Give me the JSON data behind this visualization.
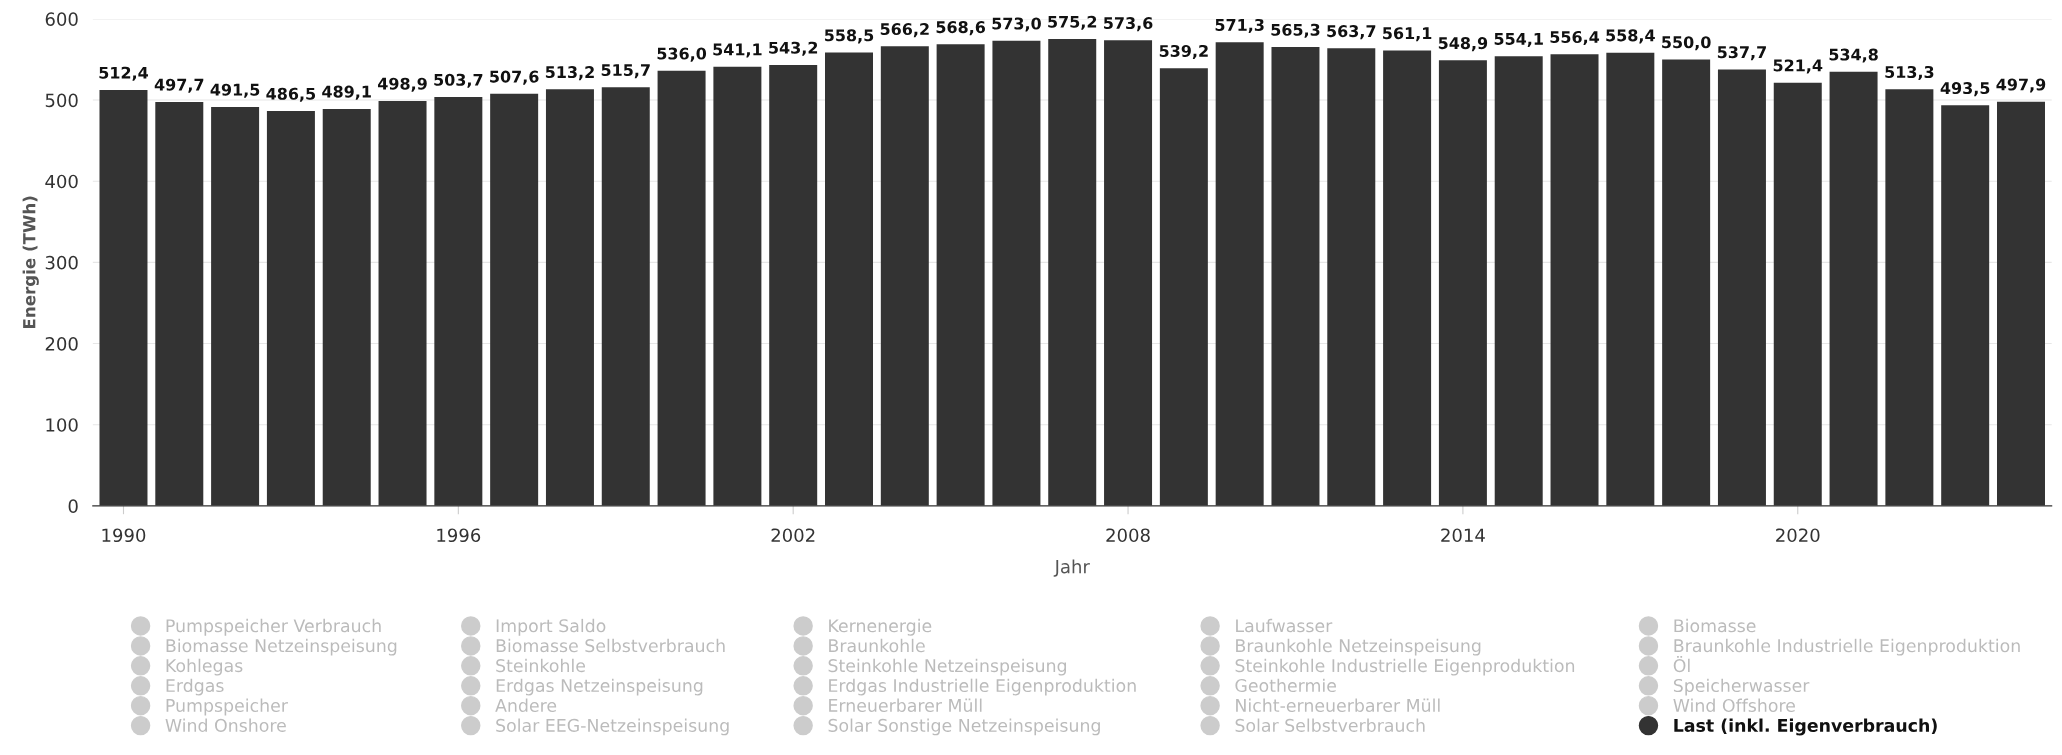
{
  "chart_data": {
    "type": "bar",
    "xlabel": "Jahr",
    "ylabel": "Energie (TWh)",
    "x": [
      1990,
      1991,
      1992,
      1993,
      1994,
      1995,
      1996,
      1997,
      1998,
      1999,
      2000,
      2001,
      2002,
      2003,
      2004,
      2005,
      2006,
      2007,
      2008,
      2009,
      2010,
      2011,
      2012,
      2013,
      2014,
      2015,
      2016,
      2017,
      2018,
      2019,
      2020,
      2021,
      2022,
      2023,
      2024
    ],
    "xlim": [
      1989.45,
      2024.55
    ],
    "xticks": [
      1990,
      1996,
      2002,
      2008,
      2014,
      2020
    ],
    "ylim": [
      0,
      600
    ],
    "yticks": [
      0,
      100,
      200,
      300,
      400,
      500,
      600
    ],
    "grid": "y",
    "legend": "bottom",
    "marker": "circle",
    "series": [
      {
        "name": "Pumpspeicher Verbrauch",
        "color": "#cccccc",
        "values": [
          null,
          null,
          null,
          null,
          null,
          null,
          null,
          null,
          null,
          null,
          null,
          null,
          null,
          null,
          null,
          null,
          null,
          null,
          null,
          null,
          null,
          null,
          null,
          null,
          null,
          null,
          null,
          null,
          null,
          null,
          null,
          null,
          null,
          null,
          null
        ]
      },
      {
        "name": "Import Saldo",
        "color": "#cccccc",
        "values": [
          null,
          null,
          null,
          null,
          null,
          null,
          null,
          null,
          null,
          null,
          null,
          null,
          null,
          null,
          null,
          null,
          null,
          null,
          null,
          null,
          null,
          null,
          null,
          null,
          null,
          null,
          null,
          null,
          null,
          null,
          null,
          null,
          null,
          null,
          null
        ]
      },
      {
        "name": "Kernenergie",
        "color": "#cccccc",
        "values": [
          null,
          null,
          null,
          null,
          null,
          null,
          null,
          null,
          null,
          null,
          null,
          null,
          null,
          null,
          null,
          null,
          null,
          null,
          null,
          null,
          null,
          null,
          null,
          null,
          null,
          null,
          null,
          null,
          null,
          null,
          null,
          null,
          null,
          null,
          null
        ]
      },
      {
        "name": "Laufwasser",
        "color": "#cccccc",
        "values": [
          null,
          null,
          null,
          null,
          null,
          null,
          null,
          null,
          null,
          null,
          null,
          null,
          null,
          null,
          null,
          null,
          null,
          null,
          null,
          null,
          null,
          null,
          null,
          null,
          null,
          null,
          null,
          null,
          null,
          null,
          null,
          null,
          null,
          null,
          null
        ]
      },
      {
        "name": "Biomasse",
        "color": "#cccccc",
        "values": [
          null,
          null,
          null,
          null,
          null,
          null,
          null,
          null,
          null,
          null,
          null,
          null,
          null,
          null,
          null,
          null,
          null,
          null,
          null,
          null,
          null,
          null,
          null,
          null,
          null,
          null,
          null,
          null,
          null,
          null,
          null,
          null,
          null,
          null,
          null
        ]
      },
      {
        "name": "Biomasse Netzeinspeisung",
        "color": "#cccccc",
        "values": [
          null,
          null,
          null,
          null,
          null,
          null,
          null,
          null,
          null,
          null,
          null,
          null,
          null,
          null,
          null,
          null,
          null,
          null,
          null,
          null,
          null,
          null,
          null,
          null,
          null,
          null,
          null,
          null,
          null,
          null,
          null,
          null,
          null,
          null,
          null
        ]
      },
      {
        "name": "Biomasse Selbstverbrauch",
        "color": "#cccccc",
        "values": [
          null,
          null,
          null,
          null,
          null,
          null,
          null,
          null,
          null,
          null,
          null,
          null,
          null,
          null,
          null,
          null,
          null,
          null,
          null,
          null,
          null,
          null,
          null,
          null,
          null,
          null,
          null,
          null,
          null,
          null,
          null,
          null,
          null,
          null,
          null
        ]
      },
      {
        "name": "Braunkohle",
        "color": "#cccccc",
        "values": [
          null,
          null,
          null,
          null,
          null,
          null,
          null,
          null,
          null,
          null,
          null,
          null,
          null,
          null,
          null,
          null,
          null,
          null,
          null,
          null,
          null,
          null,
          null,
          null,
          null,
          null,
          null,
          null,
          null,
          null,
          null,
          null,
          null,
          null,
          null
        ]
      },
      {
        "name": "Braunkohle Netzeinspeisung",
        "color": "#cccccc",
        "values": [
          null,
          null,
          null,
          null,
          null,
          null,
          null,
          null,
          null,
          null,
          null,
          null,
          null,
          null,
          null,
          null,
          null,
          null,
          null,
          null,
          null,
          null,
          null,
          null,
          null,
          null,
          null,
          null,
          null,
          null,
          null,
          null,
          null,
          null,
          null
        ]
      },
      {
        "name": "Braunkohle Industrielle Eigenproduktion",
        "color": "#cccccc",
        "values": [
          null,
          null,
          null,
          null,
          null,
          null,
          null,
          null,
          null,
          null,
          null,
          null,
          null,
          null,
          null,
          null,
          null,
          null,
          null,
          null,
          null,
          null,
          null,
          null,
          null,
          null,
          null,
          null,
          null,
          null,
          null,
          null,
          null,
          null,
          null
        ]
      },
      {
        "name": "Kohlegas",
        "color": "#cccccc",
        "values": [
          null,
          null,
          null,
          null,
          null,
          null,
          null,
          null,
          null,
          null,
          null,
          null,
          null,
          null,
          null,
          null,
          null,
          null,
          null,
          null,
          null,
          null,
          null,
          null,
          null,
          null,
          null,
          null,
          null,
          null,
          null,
          null,
          null,
          null,
          null
        ]
      },
      {
        "name": "Steinkohle",
        "color": "#cccccc",
        "values": [
          null,
          null,
          null,
          null,
          null,
          null,
          null,
          null,
          null,
          null,
          null,
          null,
          null,
          null,
          null,
          null,
          null,
          null,
          null,
          null,
          null,
          null,
          null,
          null,
          null,
          null,
          null,
          null,
          null,
          null,
          null,
          null,
          null,
          null,
          null
        ]
      },
      {
        "name": "Steinkohle Netzeinspeisung",
        "color": "#cccccc",
        "values": [
          null,
          null,
          null,
          null,
          null,
          null,
          null,
          null,
          null,
          null,
          null,
          null,
          null,
          null,
          null,
          null,
          null,
          null,
          null,
          null,
          null,
          null,
          null,
          null,
          null,
          null,
          null,
          null,
          null,
          null,
          null,
          null,
          null,
          null,
          null
        ]
      },
      {
        "name": "Steinkohle Industrielle Eigenproduktion",
        "color": "#cccccc",
        "values": [
          null,
          null,
          null,
          null,
          null,
          null,
          null,
          null,
          null,
          null,
          null,
          null,
          null,
          null,
          null,
          null,
          null,
          null,
          null,
          null,
          null,
          null,
          null,
          null,
          null,
          null,
          null,
          null,
          null,
          null,
          null,
          null,
          null,
          null,
          null
        ]
      },
      {
        "name": "Öl",
        "color": "#cccccc",
        "values": [
          null,
          null,
          null,
          null,
          null,
          null,
          null,
          null,
          null,
          null,
          null,
          null,
          null,
          null,
          null,
          null,
          null,
          null,
          null,
          null,
          null,
          null,
          null,
          null,
          null,
          null,
          null,
          null,
          null,
          null,
          null,
          null,
          null,
          null,
          null
        ]
      },
      {
        "name": "Erdgas",
        "color": "#cccccc",
        "values": [
          null,
          null,
          null,
          null,
          null,
          null,
          null,
          null,
          null,
          null,
          null,
          null,
          null,
          null,
          null,
          null,
          null,
          null,
          null,
          null,
          null,
          null,
          null,
          null,
          null,
          null,
          null,
          null,
          null,
          null,
          null,
          null,
          null,
          null,
          null
        ]
      },
      {
        "name": "Erdgas Netzeinspeisung",
        "color": "#cccccc",
        "values": [
          null,
          null,
          null,
          null,
          null,
          null,
          null,
          null,
          null,
          null,
          null,
          null,
          null,
          null,
          null,
          null,
          null,
          null,
          null,
          null,
          null,
          null,
          null,
          null,
          null,
          null,
          null,
          null,
          null,
          null,
          null,
          null,
          null,
          null,
          null
        ]
      },
      {
        "name": "Erdgas Industrielle Eigenproduktion",
        "color": "#cccccc",
        "values": [
          null,
          null,
          null,
          null,
          null,
          null,
          null,
          null,
          null,
          null,
          null,
          null,
          null,
          null,
          null,
          null,
          null,
          null,
          null,
          null,
          null,
          null,
          null,
          null,
          null,
          null,
          null,
          null,
          null,
          null,
          null,
          null,
          null,
          null,
          null
        ]
      },
      {
        "name": "Geothermie",
        "color": "#cccccc",
        "values": [
          null,
          null,
          null,
          null,
          null,
          null,
          null,
          null,
          null,
          null,
          null,
          null,
          null,
          null,
          null,
          null,
          null,
          null,
          null,
          null,
          null,
          null,
          null,
          null,
          null,
          null,
          null,
          null,
          null,
          null,
          null,
          null,
          null,
          null,
          null
        ]
      },
      {
        "name": "Speicherwasser",
        "color": "#cccccc",
        "values": [
          null,
          null,
          null,
          null,
          null,
          null,
          null,
          null,
          null,
          null,
          null,
          null,
          null,
          null,
          null,
          null,
          null,
          null,
          null,
          null,
          null,
          null,
          null,
          null,
          null,
          null,
          null,
          null,
          null,
          null,
          null,
          null,
          null,
          null,
          null
        ]
      },
      {
        "name": "Pumpspeicher",
        "color": "#cccccc",
        "values": [
          null,
          null,
          null,
          null,
          null,
          null,
          null,
          null,
          null,
          null,
          null,
          null,
          null,
          null,
          null,
          null,
          null,
          null,
          null,
          null,
          null,
          null,
          null,
          null,
          null,
          null,
          null,
          null,
          null,
          null,
          null,
          null,
          null,
          null,
          null
        ]
      },
      {
        "name": "Andere",
        "color": "#cccccc",
        "values": [
          null,
          null,
          null,
          null,
          null,
          null,
          null,
          null,
          null,
          null,
          null,
          null,
          null,
          null,
          null,
          null,
          null,
          null,
          null,
          null,
          null,
          null,
          null,
          null,
          null,
          null,
          null,
          null,
          null,
          null,
          null,
          null,
          null,
          null,
          null
        ]
      },
      {
        "name": "Erneuerbarer Müll",
        "color": "#cccccc",
        "values": [
          null,
          null,
          null,
          null,
          null,
          null,
          null,
          null,
          null,
          null,
          null,
          null,
          null,
          null,
          null,
          null,
          null,
          null,
          null,
          null,
          null,
          null,
          null,
          null,
          null,
          null,
          null,
          null,
          null,
          null,
          null,
          null,
          null,
          null,
          null
        ]
      },
      {
        "name": "Nicht-erneuerbarer Müll",
        "color": "#cccccc",
        "values": [
          null,
          null,
          null,
          null,
          null,
          null,
          null,
          null,
          null,
          null,
          null,
          null,
          null,
          null,
          null,
          null,
          null,
          null,
          null,
          null,
          null,
          null,
          null,
          null,
          null,
          null,
          null,
          null,
          null,
          null,
          null,
          null,
          null,
          null,
          null
        ]
      },
      {
        "name": "Wind Offshore",
        "color": "#cccccc",
        "values": [
          null,
          null,
          null,
          null,
          null,
          null,
          null,
          null,
          null,
          null,
          null,
          null,
          null,
          null,
          null,
          null,
          null,
          null,
          null,
          null,
          null,
          null,
          null,
          null,
          null,
          null,
          null,
          null,
          null,
          null,
          null,
          null,
          null,
          null,
          null
        ]
      },
      {
        "name": "Wind Onshore",
        "color": "#cccccc",
        "values": [
          null,
          null,
          null,
          null,
          null,
          null,
          null,
          null,
          null,
          null,
          null,
          null,
          null,
          null,
          null,
          null,
          null,
          null,
          null,
          null,
          null,
          null,
          null,
          null,
          null,
          null,
          null,
          null,
          null,
          null,
          null,
          null,
          null,
          null,
          null
        ]
      },
      {
        "name": "Solar EEG-Netzeinspeisung",
        "color": "#cccccc",
        "values": [
          null,
          null,
          null,
          null,
          null,
          null,
          null,
          null,
          null,
          null,
          null,
          null,
          null,
          null,
          null,
          null,
          null,
          null,
          null,
          null,
          null,
          null,
          null,
          null,
          null,
          null,
          null,
          null,
          null,
          null,
          null,
          null,
          null,
          null,
          null
        ]
      },
      {
        "name": "Solar Sonstige Netzeinspeisung",
        "color": "#cccccc",
        "values": [
          null,
          null,
          null,
          null,
          null,
          null,
          null,
          null,
          null,
          null,
          null,
          null,
          null,
          null,
          null,
          null,
          null,
          null,
          null,
          null,
          null,
          null,
          null,
          null,
          null,
          null,
          null,
          null,
          null,
          null,
          null,
          null,
          null,
          null,
          null
        ]
      },
      {
        "name": "Solar Selbstverbrauch",
        "color": "#cccccc",
        "values": [
          null,
          null,
          null,
          null,
          null,
          null,
          null,
          null,
          null,
          null,
          null,
          null,
          null,
          null,
          null,
          null,
          null,
          null,
          null,
          null,
          null,
          null,
          null,
          null,
          null,
          null,
          null,
          null,
          null,
          null,
          null,
          null,
          null,
          null,
          null
        ]
      },
      {
        "name": "Last (inkl. Eigenverbrauch)",
        "color": "#333333",
        "values": [
          512.4,
          497.7,
          491.5,
          486.5,
          489.1,
          498.9,
          503.7,
          507.6,
          513.2,
          515.7,
          536.0,
          541.1,
          543.2,
          558.5,
          566.2,
          568.6,
          573.0,
          575.2,
          573.6,
          539.2,
          571.3,
          565.3,
          563.7,
          561.1,
          548.9,
          554.1,
          556.4,
          558.4,
          550.0,
          537.7,
          521.4,
          534.8,
          513.3,
          493.5,
          497.9
        ],
        "value_labels": [
          "512,4",
          "497,7",
          "491,5",
          "486,5",
          "489,1",
          "498,9",
          "503,7",
          "507,6",
          "513,2",
          "515,7",
          "536,0",
          "541,1",
          "543,2",
          "558,5",
          "566,2",
          "568,6",
          "573,0",
          "575,2",
          "573,6",
          "539,2",
          "571,3",
          "565,3",
          "563,7",
          "561,1",
          "548,9",
          "554,1",
          "556,4",
          "558,4",
          "550,0",
          "537,7",
          "521,4",
          "534,8",
          "513,3",
          "493,5",
          "497,9"
        ]
      }
    ]
  }
}
